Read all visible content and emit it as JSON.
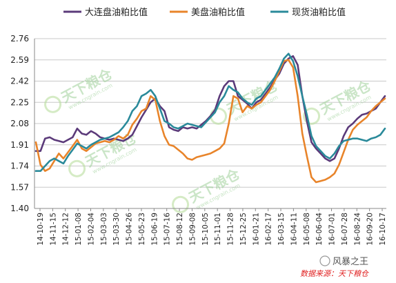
{
  "chart_data": {
    "type": "line",
    "ylim": [
      1.4,
      2.76
    ],
    "yticks": [
      "2.76",
      "2.59",
      "2.42",
      "2.25",
      "2.08",
      "1.91",
      "1.74",
      "1.57",
      "1.40"
    ],
    "ytick_values": [
      2.76,
      2.59,
      2.42,
      2.25,
      2.08,
      1.91,
      1.74,
      1.57,
      1.4
    ],
    "xticks": [
      "14-10-19",
      "14-11-15",
      "14-12-12",
      "15-01-08",
      "15-02-04",
      "15-03-03",
      "15-03-30",
      "15-04-26",
      "15-05-23",
      "15-06-19",
      "15-07-16",
      "15-08-12",
      "15-09-08",
      "15-10-05",
      "15-11-01",
      "15-11-28",
      "15-12-25",
      "16-01-21",
      "16-02-17",
      "16-03-15",
      "16-04-11",
      "16-05-08",
      "16-06-04",
      "16-07-01",
      "16-07-28",
      "16-08-24",
      "16-09-20",
      "16-10-17"
    ],
    "grid": "horizontal",
    "legend_position": "top",
    "series": [
      {
        "name": "大连盘油粕比值",
        "color": "#5b3a7a",
        "values": [
          1.86,
          1.86,
          1.96,
          1.97,
          1.95,
          1.94,
          1.93,
          1.95,
          1.97,
          2.04,
          2.0,
          1.99,
          2.02,
          2.0,
          1.97,
          1.96,
          1.95,
          1.96,
          1.95,
          1.94,
          1.96,
          1.99,
          2.06,
          2.13,
          2.19,
          2.25,
          2.28,
          2.22,
          2.18,
          2.05,
          2.03,
          2.02,
          2.05,
          2.04,
          2.05,
          2.04,
          2.07,
          2.1,
          2.14,
          2.19,
          2.3,
          2.38,
          2.42,
          2.42,
          2.3,
          2.27,
          2.24,
          2.2,
          2.25,
          2.27,
          2.32,
          2.37,
          2.43,
          2.48,
          2.56,
          2.6,
          2.62,
          2.55,
          2.3,
          2.1,
          1.93,
          1.88,
          1.84,
          1.8,
          1.78,
          1.8,
          1.88,
          1.98,
          2.05,
          2.08,
          2.12,
          2.15,
          2.16,
          2.18,
          2.2,
          2.25,
          2.3
        ]
      },
      {
        "name": "美盘油粕比值",
        "color": "#e8842a",
        "values": [
          1.93,
          1.75,
          1.7,
          1.72,
          1.78,
          1.84,
          1.8,
          1.85,
          1.9,
          1.95,
          1.88,
          1.86,
          1.89,
          1.92,
          1.93,
          1.94,
          1.93,
          1.95,
          1.98,
          1.96,
          1.99,
          2.07,
          2.12,
          2.18,
          2.2,
          2.3,
          2.27,
          2.1,
          1.98,
          1.91,
          1.9,
          1.87,
          1.84,
          1.8,
          1.79,
          1.81,
          1.82,
          1.83,
          1.84,
          1.86,
          1.88,
          1.92,
          2.08,
          2.3,
          2.28,
          2.17,
          2.22,
          2.2,
          2.23,
          2.25,
          2.3,
          2.35,
          2.42,
          2.5,
          2.58,
          2.59,
          2.53,
          2.3,
          2.0,
          1.82,
          1.65,
          1.61,
          1.62,
          1.63,
          1.65,
          1.68,
          1.75,
          1.85,
          1.95,
          2.03,
          2.07,
          2.1,
          2.13,
          2.18,
          2.22,
          2.25,
          2.28
        ]
      },
      {
        "name": "现货油粕比值",
        "color": "#2a8a9a",
        "values": [
          1.7,
          1.7,
          1.74,
          1.78,
          1.8,
          1.78,
          1.76,
          1.82,
          1.87,
          1.92,
          1.9,
          1.88,
          1.91,
          1.93,
          1.95,
          1.96,
          1.97,
          1.99,
          2.01,
          2.05,
          2.1,
          2.18,
          2.22,
          2.3,
          2.32,
          2.35,
          2.3,
          2.2,
          2.1,
          2.08,
          2.05,
          2.04,
          2.06,
          2.08,
          2.07,
          2.06,
          2.05,
          2.09,
          2.13,
          2.17,
          2.25,
          2.3,
          2.38,
          2.35,
          2.33,
          2.28,
          2.25,
          2.23,
          2.28,
          2.3,
          2.35,
          2.4,
          2.45,
          2.52,
          2.6,
          2.64,
          2.58,
          2.46,
          2.3,
          2.15,
          1.98,
          1.9,
          1.86,
          1.82,
          1.8,
          1.84,
          1.9,
          1.94,
          1.95,
          1.96,
          1.96,
          1.95,
          1.94,
          1.96,
          1.97,
          1.99,
          2.04
        ]
      }
    ]
  },
  "watermarks": [
    {
      "text": "天下粮仓",
      "sub": "www.cngrain.com"
    },
    {
      "text": "天下粮仓",
      "sub": "www.cngrain.com"
    },
    {
      "text": "天下粮仓",
      "sub": "www.cngrain.com"
    },
    {
      "text": "天下粮仓",
      "sub": "www.cngrain.com"
    },
    {
      "text": "天下粮仓",
      "sub": "www.cngrain.com"
    }
  ],
  "footer": {
    "brand": "风暴之王",
    "source": "数据来源：天下粮仓"
  }
}
